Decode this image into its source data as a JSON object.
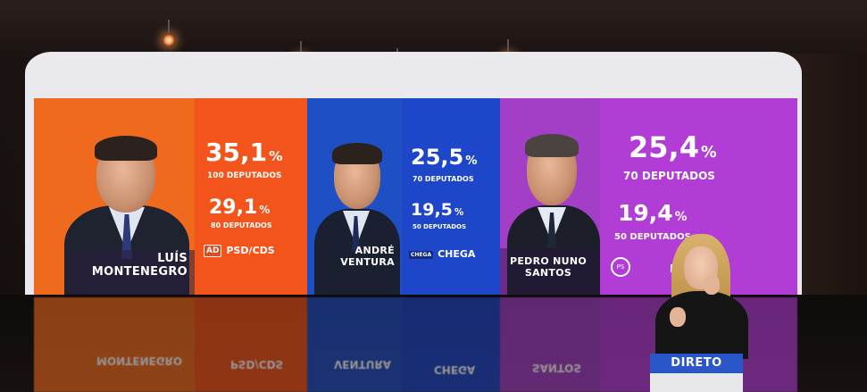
{
  "scene": {
    "broadcast_badge": "DIRETO"
  },
  "candidates": [
    {
      "name_line1": "LUÍS",
      "name_line2": "MONTENEGRO",
      "pct_main": "35,1",
      "deputies_main": "100 DEPUTADOS",
      "pct_secondary": "29,1",
      "deputies_secondary": "80 DEPUTADOS",
      "party_badge": "AD",
      "party_label": "PSD/CDS",
      "photo_color": "#f06a1e",
      "results_color": "#f2541b"
    },
    {
      "name_line1": "ANDRÉ",
      "name_line2": "VENTURA",
      "pct_main": "25,5",
      "deputies_main": "70 DEPUTADOS",
      "pct_secondary": "19,5",
      "deputies_secondary": "50 DEPUTADOS",
      "party_badge": "CHEGA",
      "party_label": "CHEGA",
      "photo_color": "#1f4fc4",
      "results_color": "#1d46c9"
    },
    {
      "name_line1": "PEDRO NUNO",
      "name_line2": "SANTOS",
      "pct_main": "25,4",
      "deputies_main": "70 DEPUTADOS",
      "pct_secondary": "19,4",
      "deputies_secondary": "50 DEPUTADOS",
      "party_badge": "PS",
      "party_label": "P",
      "photo_color": "#a23fc6",
      "results_color": "#b23dd6"
    }
  ],
  "percent_symbol": "%"
}
